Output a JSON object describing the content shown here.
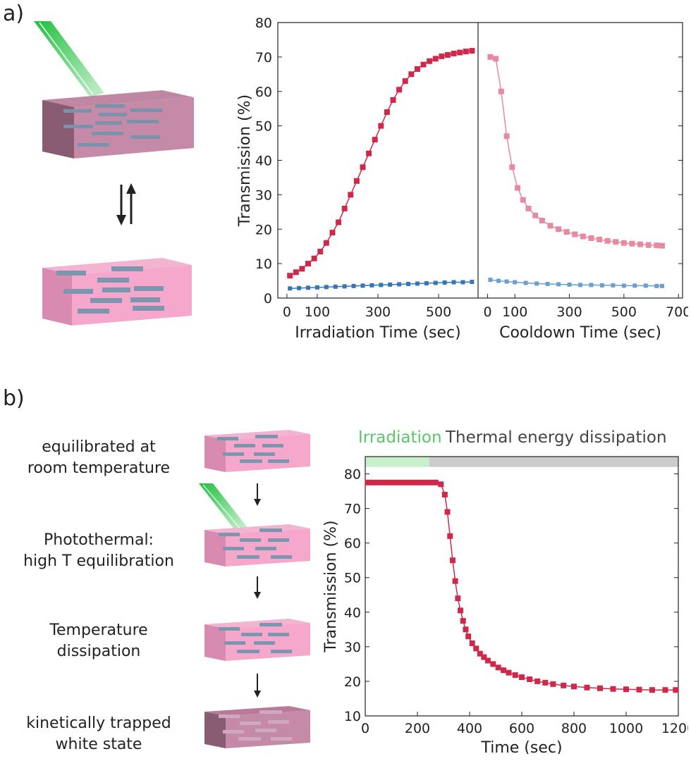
{
  "panel_a": {
    "label": "a)",
    "chart_data": {
      "type": "scatter",
      "ylabel": "Transmission (%)",
      "ylim": [
        0,
        80
      ],
      "yticks": [
        0,
        10,
        20,
        30,
        40,
        50,
        60,
        70,
        80
      ],
      "subplots": [
        {
          "xlabel": "Irradiation Time (sec)",
          "xticks": [
            0,
            100,
            300,
            500
          ],
          "xlim": [
            -30,
            630
          ],
          "series": [
            {
              "color": "#d0284a",
              "x": [
                10,
                30,
                50,
                70,
                90,
                110,
                130,
                150,
                170,
                190,
                210,
                230,
                250,
                270,
                290,
                310,
                330,
                350,
                370,
                390,
                410,
                430,
                450,
                470,
                490,
                510,
                530,
                550,
                570,
                590,
                610
              ],
              "y": [
                6.5,
                7.5,
                8.5,
                10,
                11.5,
                13.5,
                16,
                19,
                22,
                26,
                30,
                34,
                38,
                42,
                46,
                50,
                54,
                57.5,
                60.5,
                63,
                65,
                66.5,
                67.8,
                68.8,
                69.5,
                70.2,
                70.6,
                71,
                71.3,
                71.6,
                71.8
              ]
            },
            {
              "color": "#3577b5",
              "x": [
                10,
                40,
                70,
                100,
                130,
                160,
                190,
                220,
                250,
                280,
                310,
                340,
                370,
                400,
                430,
                460,
                490,
                520,
                550,
                580,
                610
              ],
              "y": [
                2.8,
                2.9,
                3.0,
                3.1,
                3.2,
                3.3,
                3.4,
                3.5,
                3.6,
                3.7,
                3.8,
                3.9,
                4.0,
                4.1,
                4.2,
                4.3,
                4.4,
                4.5,
                4.6,
                4.6,
                4.7
              ]
            }
          ]
        },
        {
          "xlabel": "Cooldown Time (sec)",
          "xticks": [
            0,
            100,
            300,
            500,
            700
          ],
          "xlim": [
            -35,
            715
          ],
          "series": [
            {
              "color": "#e58aa0",
              "x": [
                10,
                30,
                50,
                70,
                90,
                110,
                130,
                150,
                175,
                200,
                230,
                260,
                290,
                320,
                350,
                380,
                410,
                440,
                470,
                500,
                530,
                560,
                590,
                620,
                640
              ],
              "y": [
                70,
                69.5,
                60,
                47,
                38,
                32,
                28.5,
                26,
                24,
                22.5,
                21,
                20,
                19.2,
                18.5,
                17.9,
                17.4,
                17,
                16.6,
                16.3,
                16,
                15.8,
                15.6,
                15.4,
                15.3,
                15.2
              ]
            },
            {
              "color": "#6b9fcc",
              "x": [
                10,
                40,
                70,
                100,
                140,
                180,
                220,
                260,
                300,
                340,
                380,
                420,
                460,
                500,
                540,
                580,
                620,
                640
              ],
              "y": [
                5.3,
                5.0,
                4.8,
                4.6,
                4.4,
                4.2,
                4.1,
                4.0,
                3.9,
                3.8,
                3.8,
                3.7,
                3.7,
                3.6,
                3.6,
                3.6,
                3.5,
                3.5
              ]
            }
          ]
        }
      ]
    }
  },
  "panel_b": {
    "label": "b)",
    "steps": [
      {
        "line1": "equilibrated at",
        "line2": "room temperature"
      },
      {
        "line1": "Photothermal:",
        "line2": "high T equilibration"
      },
      {
        "line1": "Temperature",
        "line2": "dissipation"
      },
      {
        "line1": "kinetically trapped",
        "line2": "white state"
      }
    ],
    "phase_labels": {
      "irradiation": "Irradiation",
      "dissipation": "Thermal energy dissipation"
    },
    "colors": {
      "irradiation": "#5cc46a",
      "irradiation_bar": "#c8f0cc",
      "dissipation_bar": "#cccccc",
      "series": "#d0284a",
      "laser": "#22c040",
      "slab": "#f0a8c8",
      "platelet": "#8aa8c8"
    },
    "chart_data": {
      "type": "scatter",
      "xlabel": "Time (sec)",
      "ylabel": "Transmission (%)",
      "xlim": [
        0,
        1200
      ],
      "ylim": [
        10,
        85
      ],
      "xticks": [
        0,
        200,
        400,
        600,
        800,
        1000,
        1200
      ],
      "yticks": [
        10,
        20,
        30,
        40,
        50,
        60,
        70,
        80
      ],
      "irradiation_end": 245,
      "series": [
        {
          "color": "#d0284a",
          "x": [
            10,
            30,
            50,
            70,
            90,
            110,
            130,
            150,
            170,
            190,
            210,
            230,
            250,
            270,
            290,
            305,
            315,
            325,
            335,
            345,
            355,
            365,
            375,
            385,
            395,
            410,
            425,
            440,
            455,
            470,
            490,
            510,
            530,
            550,
            575,
            600,
            630,
            660,
            690,
            720,
            760,
            800,
            850,
            900,
            950,
            1000,
            1050,
            1100,
            1150,
            1190
          ],
          "y": [
            77.5,
            77.5,
            77.5,
            77.5,
            77.5,
            77.5,
            77.5,
            77.5,
            77.5,
            77.5,
            77.5,
            77.5,
            77.5,
            77.5,
            77,
            74,
            69,
            62,
            55,
            49,
            44,
            40.5,
            37.5,
            35,
            33,
            31,
            29.5,
            28,
            27,
            26,
            25,
            24,
            23.2,
            22.5,
            21.8,
            21.2,
            20.6,
            20,
            19.6,
            19.2,
            18.8,
            18.5,
            18.2,
            18,
            17.8,
            17.7,
            17.6,
            17.5,
            17.5,
            17.5
          ]
        }
      ]
    }
  }
}
